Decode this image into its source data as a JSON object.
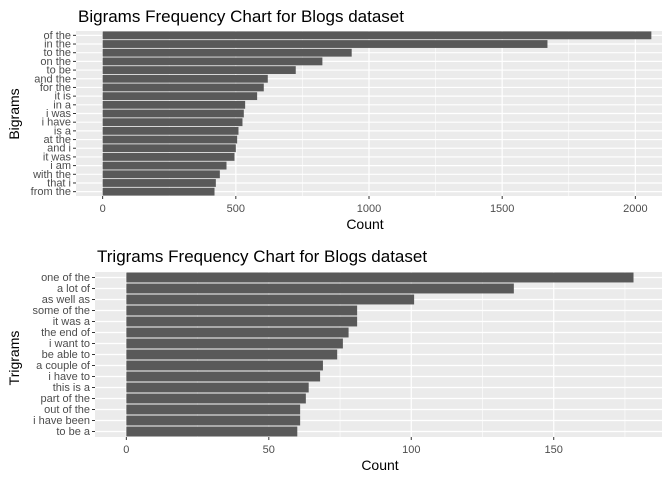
{
  "chart_data": [
    {
      "type": "bar",
      "orientation": "horizontal",
      "title": "Bigrams Frequency Chart for Blogs dataset",
      "xlabel": "Count",
      "ylabel": "Bigrams",
      "xlim": [
        -100,
        2100
      ],
      "xticks": [
        0,
        500,
        1000,
        1500,
        2000
      ],
      "grid": true,
      "bar_color": "#595959",
      "panel_color": "#EBEBEB",
      "categories": [
        "of the",
        "in the",
        "to the",
        "on the",
        "to be",
        "and the",
        "for the",
        "it is",
        "in a",
        "i was",
        "i have",
        "is a",
        "at the",
        "and i",
        "it was",
        "i am",
        "with the",
        "that i",
        "from the"
      ],
      "values": [
        2060,
        1670,
        935,
        825,
        725,
        620,
        605,
        580,
        535,
        530,
        525,
        510,
        505,
        500,
        495,
        465,
        440,
        425,
        420
      ]
    },
    {
      "type": "bar",
      "orientation": "horizontal",
      "title": "Trigrams Frequency Chart for Blogs dataset",
      "xlabel": "Count",
      "ylabel": "Trigrams",
      "xlim": [
        -11,
        188
      ],
      "xticks": [
        0,
        50,
        100,
        150
      ],
      "grid": true,
      "bar_color": "#595959",
      "panel_color": "#EBEBEB",
      "categories": [
        "one of the",
        "a lot of",
        "as well as",
        "some of the",
        "it was a",
        "the end of",
        "i want to",
        "be able to",
        "a couple of",
        "i have to",
        "this is a",
        "part of the",
        "out of the",
        "i have been",
        "to be a"
      ],
      "values": [
        178,
        136,
        101,
        81,
        81,
        78,
        76,
        74,
        69,
        68,
        64,
        63,
        61,
        61,
        60
      ]
    }
  ]
}
